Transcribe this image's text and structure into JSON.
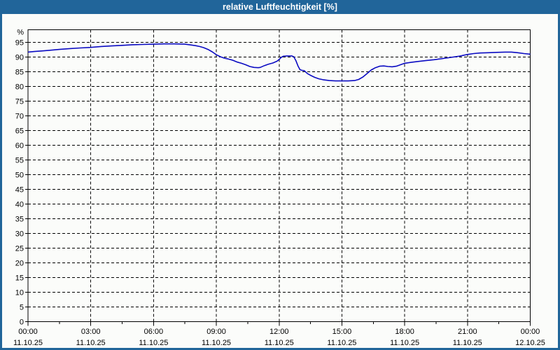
{
  "window": {
    "title": "relative Luftfeuchtigkeit [%]"
  },
  "colors": {
    "titlebar_bg": "#21659A",
    "titlebar_text": "#FFFFFF",
    "frame_border": "#21659A",
    "page_bg": "#FBFCFA",
    "grid": "#000000",
    "axis": "#000000",
    "line": "#0B0BC2",
    "label_text": "#000000"
  },
  "chart_data": {
    "type": "line",
    "title": "relative Luftfeuchtigkeit [%]",
    "ylabel": "%",
    "y_unit_label": "%",
    "ylim": [
      0,
      99.3
    ],
    "xlim_hours": [
      0,
      24
    ],
    "grid": true,
    "y_ticks": [
      0,
      5,
      10,
      15,
      20,
      25,
      30,
      35,
      40,
      45,
      50,
      55,
      60,
      65,
      70,
      75,
      80,
      85,
      90,
      95
    ],
    "x_minor_ticks_hours": [
      1.5,
      4.5,
      7.5,
      10.5,
      13.5,
      16.5,
      19.5,
      22.5
    ],
    "x_ticks": [
      {
        "hour": 0,
        "time": "00:00",
        "date": "11.10.25"
      },
      {
        "hour": 3,
        "time": "03:00",
        "date": "11.10.25"
      },
      {
        "hour": 6,
        "time": "06:00",
        "date": "11.10.25"
      },
      {
        "hour": 9,
        "time": "09:00",
        "date": "11.10.25"
      },
      {
        "hour": 12,
        "time": "12:00",
        "date": "11.10.25"
      },
      {
        "hour": 15,
        "time": "15:00",
        "date": "11.10.25"
      },
      {
        "hour": 18,
        "time": "18:00",
        "date": "11.10.25"
      },
      {
        "hour": 21,
        "time": "21:00",
        "date": "11.10.25"
      },
      {
        "hour": 24,
        "time": "00:00",
        "date": "12.10.25"
      }
    ],
    "series": [
      {
        "name": "relative Luftfeuchtigkeit",
        "points": [
          [
            0.0,
            91.7
          ],
          [
            0.3,
            91.9
          ],
          [
            0.7,
            92.1
          ],
          [
            1.0,
            92.3
          ],
          [
            1.5,
            92.6
          ],
          [
            2.0,
            92.9
          ],
          [
            2.5,
            93.1
          ],
          [
            3.0,
            93.3
          ],
          [
            3.5,
            93.6
          ],
          [
            4.0,
            93.8
          ],
          [
            4.5,
            94.0
          ],
          [
            5.0,
            94.2
          ],
          [
            5.5,
            94.3
          ],
          [
            6.0,
            94.4
          ],
          [
            6.5,
            94.5
          ],
          [
            7.0,
            94.5
          ],
          [
            7.5,
            94.4
          ],
          [
            7.8,
            94.1
          ],
          [
            8.0,
            93.9
          ],
          [
            8.2,
            93.6
          ],
          [
            8.4,
            93.2
          ],
          [
            8.6,
            92.6
          ],
          [
            8.8,
            91.8
          ],
          [
            9.0,
            90.8
          ],
          [
            9.2,
            90.1
          ],
          [
            9.4,
            89.6
          ],
          [
            9.6,
            89.3
          ],
          [
            9.8,
            88.9
          ],
          [
            10.0,
            88.3
          ],
          [
            10.2,
            87.9
          ],
          [
            10.4,
            87.4
          ],
          [
            10.6,
            86.8
          ],
          [
            10.8,
            86.5
          ],
          [
            11.0,
            86.4
          ],
          [
            11.1,
            86.5
          ],
          [
            11.3,
            87.1
          ],
          [
            11.5,
            87.6
          ],
          [
            11.7,
            88.0
          ],
          [
            11.9,
            88.6
          ],
          [
            12.0,
            89.2
          ],
          [
            12.1,
            89.9
          ],
          [
            12.2,
            90.3
          ],
          [
            12.4,
            90.4
          ],
          [
            12.6,
            90.4
          ],
          [
            12.7,
            90.1
          ],
          [
            12.8,
            88.8
          ],
          [
            12.9,
            87.0
          ],
          [
            13.0,
            85.7
          ],
          [
            13.1,
            85.5
          ],
          [
            13.2,
            85.4
          ],
          [
            13.35,
            84.4
          ],
          [
            13.5,
            83.8
          ],
          [
            13.7,
            83.1
          ],
          [
            13.9,
            82.6
          ],
          [
            14.1,
            82.3
          ],
          [
            14.4,
            82.0
          ],
          [
            14.7,
            81.9
          ],
          [
            15.0,
            81.9
          ],
          [
            15.3,
            81.9
          ],
          [
            15.6,
            82.0
          ],
          [
            15.8,
            82.4
          ],
          [
            16.0,
            83.2
          ],
          [
            16.2,
            84.4
          ],
          [
            16.4,
            85.6
          ],
          [
            16.6,
            86.4
          ],
          [
            16.8,
            86.9
          ],
          [
            17.0,
            87.0
          ],
          [
            17.2,
            86.8
          ],
          [
            17.4,
            86.7
          ],
          [
            17.6,
            86.9
          ],
          [
            17.8,
            87.4
          ],
          [
            18.0,
            87.9
          ],
          [
            18.3,
            88.2
          ],
          [
            18.6,
            88.5
          ],
          [
            19.0,
            88.8
          ],
          [
            19.4,
            89.1
          ],
          [
            19.8,
            89.5
          ],
          [
            20.2,
            89.9
          ],
          [
            20.6,
            90.3
          ],
          [
            21.0,
            90.9
          ],
          [
            21.3,
            91.2
          ],
          [
            21.6,
            91.4
          ],
          [
            22.0,
            91.5
          ],
          [
            22.4,
            91.6
          ],
          [
            22.8,
            91.7
          ],
          [
            23.1,
            91.7
          ],
          [
            23.4,
            91.5
          ],
          [
            23.7,
            91.2
          ],
          [
            24.0,
            91.0
          ]
        ]
      }
    ]
  }
}
